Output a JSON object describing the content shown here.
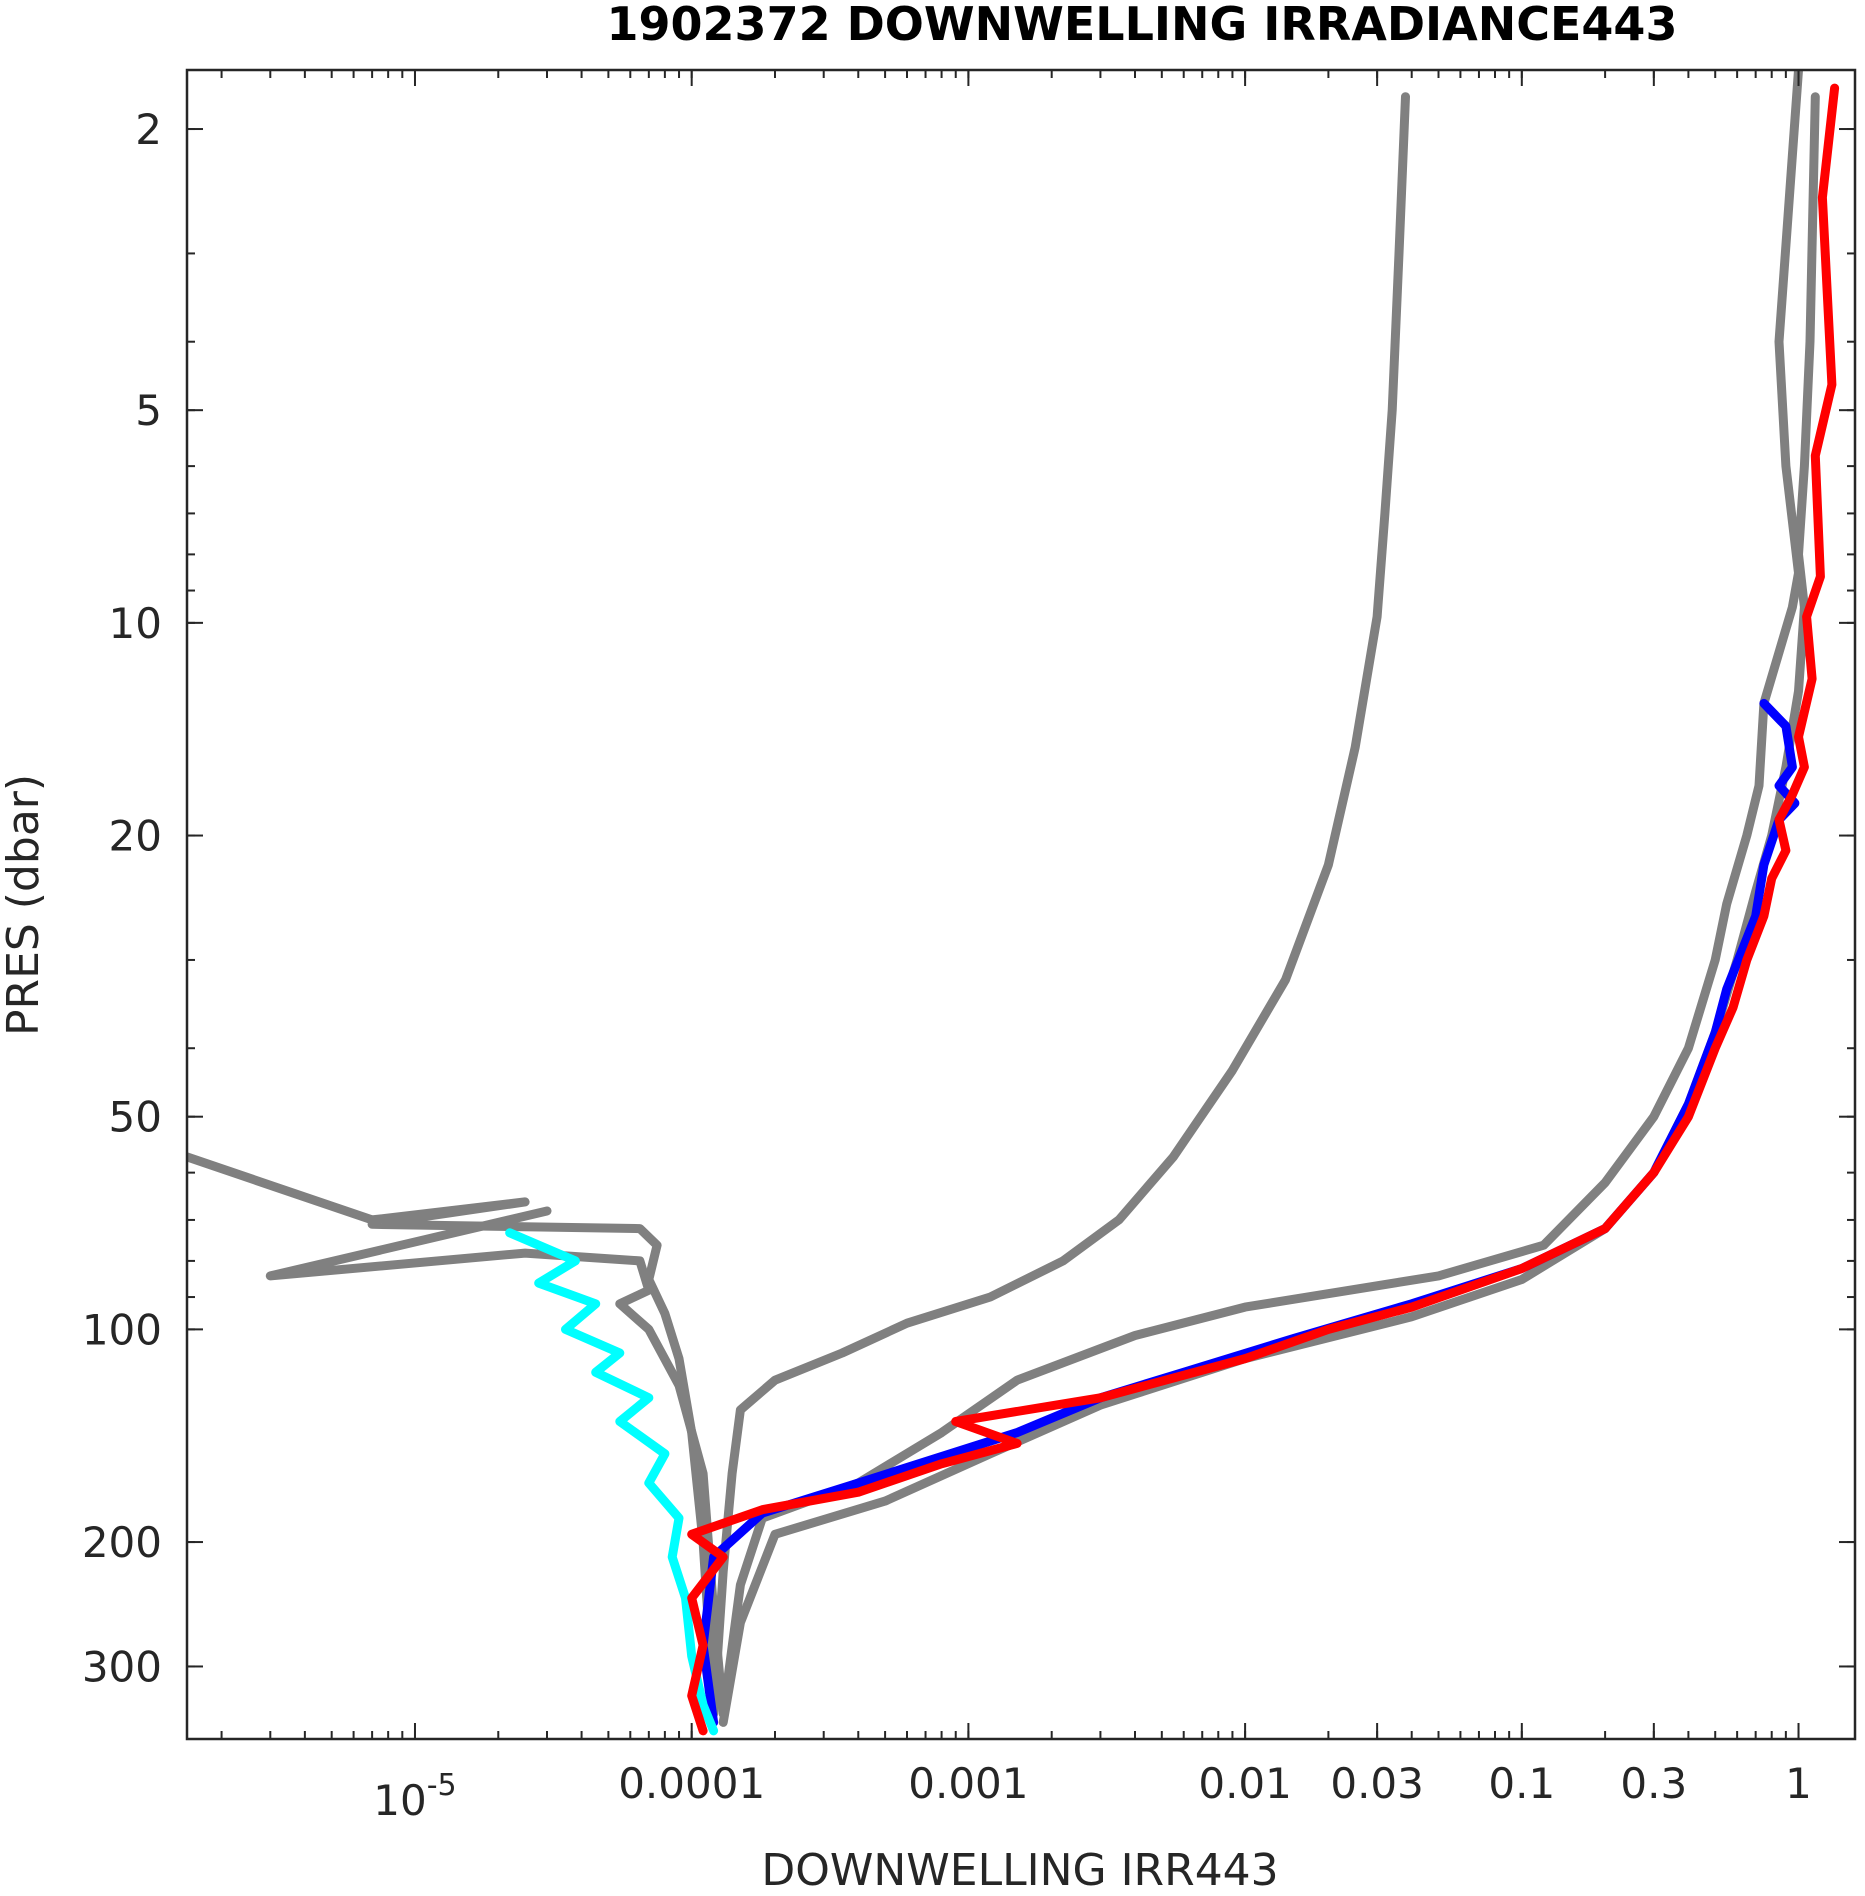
{
  "chart_data": {
    "type": "line",
    "title": "1902372  DOWNWELLING IRRADIANCE443",
    "xlabel": "DOWNWELLING IRR443",
    "ylabel": "PRES (dbar)",
    "xscale": "log",
    "yscale": "log",
    "yreversed": true,
    "xlim": [
      1.5e-06,
      1.6
    ],
    "ylim": [
      1.65,
      380
    ],
    "xticks": [
      {
        "value": 1e-05,
        "label": "10",
        "exp": "-5"
      },
      {
        "value": 0.0001,
        "label": "0.0001"
      },
      {
        "value": 0.001,
        "label": "0.001"
      },
      {
        "value": 0.01,
        "label": "0.01"
      },
      {
        "value": 0.03,
        "label": "0.03"
      },
      {
        "value": 0.1,
        "label": "0.1"
      },
      {
        "value": 0.3,
        "label": "0.3"
      },
      {
        "value": 1,
        "label": "1"
      }
    ],
    "yticks": [
      {
        "value": 2,
        "label": "2"
      },
      {
        "value": 5,
        "label": "5"
      },
      {
        "value": 10,
        "label": "10"
      },
      {
        "value": 20,
        "label": "20"
      },
      {
        "value": 50,
        "label": "50"
      },
      {
        "value": 100,
        "label": "100"
      },
      {
        "value": 200,
        "label": "200"
      },
      {
        "value": 300,
        "label": "300"
      }
    ],
    "grid": false,
    "legend": "none",
    "series": [
      {
        "color": "#808080",
        "points": [
          [
            0.038,
            1.8
          ],
          [
            0.036,
            3.0
          ],
          [
            0.034,
            5.0
          ],
          [
            0.032,
            7.0
          ],
          [
            0.03,
            9.8
          ],
          [
            0.025,
            15.0
          ],
          [
            0.02,
            22.0
          ],
          [
            0.014,
            32.0
          ],
          [
            0.009,
            43.0
          ],
          [
            0.0055,
            57.0
          ],
          [
            0.0035,
            70.0
          ],
          [
            0.0022,
            80.0
          ],
          [
            0.0012,
            90.0
          ],
          [
            0.0006,
            98.0
          ],
          [
            0.00035,
            108.0
          ],
          [
            0.0002,
            118.0
          ],
          [
            0.00015,
            130.0
          ],
          [
            0.00014,
            160.0
          ],
          [
            0.00013,
            220.0
          ],
          [
            0.00012,
            350.0
          ]
        ]
      },
      {
        "color": "#808080",
        "points": [
          [
            1.0,
            1.65
          ],
          [
            0.85,
            4.0
          ],
          [
            0.9,
            6.0
          ],
          [
            1.0,
            8.5
          ],
          [
            0.95,
            9.5
          ],
          [
            0.75,
            13.0
          ],
          [
            0.72,
            17.0
          ],
          [
            0.65,
            20.0
          ],
          [
            0.55,
            25.0
          ],
          [
            0.5,
            30.0
          ],
          [
            0.4,
            40.0
          ],
          [
            0.3,
            50.0
          ],
          [
            0.2,
            62.0
          ],
          [
            0.12,
            76.0
          ],
          [
            0.05,
            84.0
          ],
          [
            0.01,
            93.0
          ],
          [
            0.004,
            102.0
          ],
          [
            0.0015,
            118.0
          ],
          [
            0.0008,
            140.0
          ],
          [
            0.0004,
            165.0
          ],
          [
            0.00018,
            185.0
          ],
          [
            0.00015,
            230.0
          ],
          [
            0.00013,
            350.0
          ]
        ]
      },
      {
        "color": "#808080",
        "points": [
          [
            1.15,
            1.8
          ],
          [
            1.1,
            4.0
          ],
          [
            1.05,
            6.0
          ],
          [
            1.0,
            8.0
          ],
          [
            1.05,
            9.5
          ],
          [
            1.0,
            12.5
          ],
          [
            0.9,
            16.0
          ],
          [
            0.8,
            20.0
          ],
          [
            0.7,
            24.0
          ],
          [
            0.6,
            30.0
          ],
          [
            0.5,
            38.0
          ],
          [
            0.4,
            48.0
          ],
          [
            0.3,
            60.0
          ],
          [
            0.2,
            72.0
          ],
          [
            0.1,
            85.0
          ],
          [
            0.04,
            96.0
          ],
          [
            0.01,
            110.0
          ],
          [
            0.003,
            128.0
          ],
          [
            0.0012,
            150.0
          ],
          [
            0.0005,
            175.0
          ],
          [
            0.0002,
            195.0
          ],
          [
            0.00015,
            260.0
          ],
          [
            0.00013,
            360.0
          ]
        ]
      },
      {
        "color": "#808080",
        "points": [
          [
            1.5e-06,
            57.0
          ],
          [
            7e-06,
            70.0
          ],
          [
            2.5e-05,
            66.0
          ],
          [
            7e-06,
            71.0
          ],
          [
            6.5e-05,
            72.0
          ],
          [
            7.5e-05,
            76.0
          ],
          [
            7e-05,
            85.0
          ],
          [
            8e-05,
            95.0
          ],
          [
            9e-05,
            110.0
          ],
          [
            0.0001,
            140.0
          ],
          [
            0.00011,
            200.0
          ],
          [
            0.00012,
            340.0
          ]
        ]
      },
      {
        "color": "#808080",
        "points": [
          [
            3e-05,
            68.0
          ],
          [
            3e-06,
            84.0
          ],
          [
            2.5e-05,
            78.0
          ],
          [
            6.5e-05,
            80.0
          ],
          [
            7e-05,
            88.0
          ],
          [
            5.5e-05,
            92.0
          ],
          [
            7e-05,
            100.0
          ],
          [
            9e-05,
            120.0
          ],
          [
            0.00011,
            160.0
          ],
          [
            0.00012,
            250.0
          ],
          [
            0.00013,
            350.0
          ]
        ]
      },
      {
        "color": "#0000ff",
        "points": [
          [
            0.75,
            13.0
          ],
          [
            0.9,
            14.0
          ],
          [
            0.95,
            16.0
          ],
          [
            0.85,
            17.0
          ],
          [
            0.97,
            18.0
          ],
          [
            0.85,
            19.0
          ],
          [
            0.75,
            22.0
          ],
          [
            0.7,
            26.0
          ],
          [
            0.55,
            33.0
          ],
          [
            0.5,
            38.0
          ],
          [
            0.4,
            48.0
          ],
          [
            0.3,
            60.0
          ],
          [
            0.2,
            72.0
          ],
          [
            0.1,
            82.0
          ],
          [
            0.04,
            92.0
          ],
          [
            0.015,
            103.0
          ],
          [
            0.006,
            115.0
          ],
          [
            0.003,
            125.0
          ],
          [
            0.0015,
            140.0
          ],
          [
            0.0004,
            165.0
          ],
          [
            0.00018,
            182.0
          ],
          [
            0.00012,
            210.0
          ],
          [
            0.00011,
            280.0
          ],
          [
            0.00012,
            360.0
          ]
        ]
      },
      {
        "color": "#00ffff",
        "points": [
          [
            2.2e-05,
            73.0
          ],
          [
            3.8e-05,
            80.0
          ],
          [
            2.8e-05,
            86.0
          ],
          [
            4.5e-05,
            92.0
          ],
          [
            3.5e-05,
            100.0
          ],
          [
            5.5e-05,
            108.0
          ],
          [
            4.5e-05,
            115.0
          ],
          [
            7e-05,
            125.0
          ],
          [
            5.5e-05,
            135.0
          ],
          [
            8e-05,
            150.0
          ],
          [
            7e-05,
            165.0
          ],
          [
            9e-05,
            185.0
          ],
          [
            8.5e-05,
            210.0
          ],
          [
            9.5e-05,
            240.0
          ],
          [
            0.0001,
            290.0
          ],
          [
            0.00011,
            340.0
          ],
          [
            0.00012,
            370.0
          ]
        ]
      },
      {
        "color": "#ff0000",
        "points": [
          [
            1.35,
            1.75
          ],
          [
            1.22,
            2.5
          ],
          [
            1.32,
            4.6
          ],
          [
            1.15,
            5.8
          ],
          [
            1.2,
            8.6
          ],
          [
            1.07,
            9.8
          ],
          [
            1.12,
            12.0
          ],
          [
            1.0,
            14.5
          ],
          [
            1.05,
            16.0
          ],
          [
            0.95,
            17.5
          ],
          [
            0.85,
            19.0
          ],
          [
            0.9,
            21.0
          ],
          [
            0.8,
            23.0
          ],
          [
            0.75,
            26.0
          ],
          [
            0.65,
            30.0
          ],
          [
            0.58,
            35.0
          ],
          [
            0.5,
            40.0
          ],
          [
            0.4,
            50.0
          ],
          [
            0.3,
            60.0
          ],
          [
            0.2,
            72.0
          ],
          [
            0.1,
            82.0
          ],
          [
            0.04,
            93.0
          ],
          [
            0.02,
            100.0
          ],
          [
            0.01,
            110.0
          ],
          [
            0.003,
            125.0
          ],
          [
            0.0009,
            135.0
          ],
          [
            0.0015,
            145.0
          ],
          [
            0.0008,
            155.0
          ],
          [
            0.0004,
            170.0
          ],
          [
            0.00018,
            180.0
          ],
          [
            0.0001,
            195.0
          ],
          [
            0.00013,
            210.0
          ],
          [
            0.0001,
            240.0
          ],
          [
            0.00011,
            280.0
          ],
          [
            0.0001,
            330.0
          ],
          [
            0.00011,
            370.0
          ]
        ]
      }
    ]
  }
}
